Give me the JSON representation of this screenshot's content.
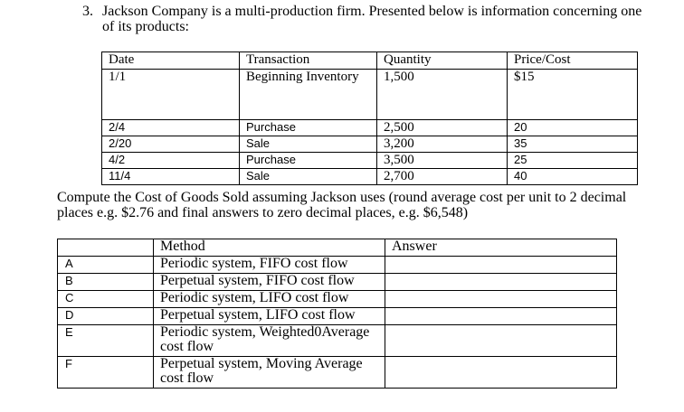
{
  "question": {
    "number": "3.",
    "text": "Jackson Company is a multi-production firm. Presented below is information concerning one of its products:"
  },
  "transactions": {
    "headers": [
      "Date",
      "Transaction",
      "Quantity",
      "Price/Cost"
    ],
    "rows": [
      {
        "date": "1/1",
        "transaction": "Beginning Inventory",
        "quantity": "1,500",
        "price": "$15"
      },
      {
        "date": "2/4",
        "transaction": "Purchase",
        "quantity": "2,500",
        "price": "20"
      },
      {
        "date": "2/20",
        "transaction": "Sale",
        "quantity": "3,200",
        "price": "35"
      },
      {
        "date": "4/2",
        "transaction": "Purchase",
        "quantity": "3,500",
        "price": "25"
      },
      {
        "date": "11/4",
        "transaction": "Sale",
        "quantity": "2,700",
        "price": "40"
      }
    ]
  },
  "instructions": "Compute the Cost of Goods Sold assuming Jackson uses (round average cost per unit to 2 decimal places e.g. $2.76 and final answers to zero decimal places, e.g. $6,548)",
  "answers": {
    "headers": [
      "",
      "Method",
      "Answer"
    ],
    "rows": [
      {
        "letter": "A",
        "method": "Periodic system, FIFO cost flow",
        "answer": ""
      },
      {
        "letter": "B",
        "method": "Perpetual system, FIFO cost flow",
        "answer": ""
      },
      {
        "letter": "C",
        "method": "Periodic system, LIFO cost flow",
        "answer": ""
      },
      {
        "letter": "D",
        "method": "Perpetual system, LIFO cost flow",
        "answer": ""
      },
      {
        "letter": "E",
        "method": "Periodic system, Weighted0Average cost flow",
        "answer": ""
      },
      {
        "letter": "F",
        "method": "Perpetual system, Moving Average cost flow",
        "answer": ""
      }
    ]
  }
}
